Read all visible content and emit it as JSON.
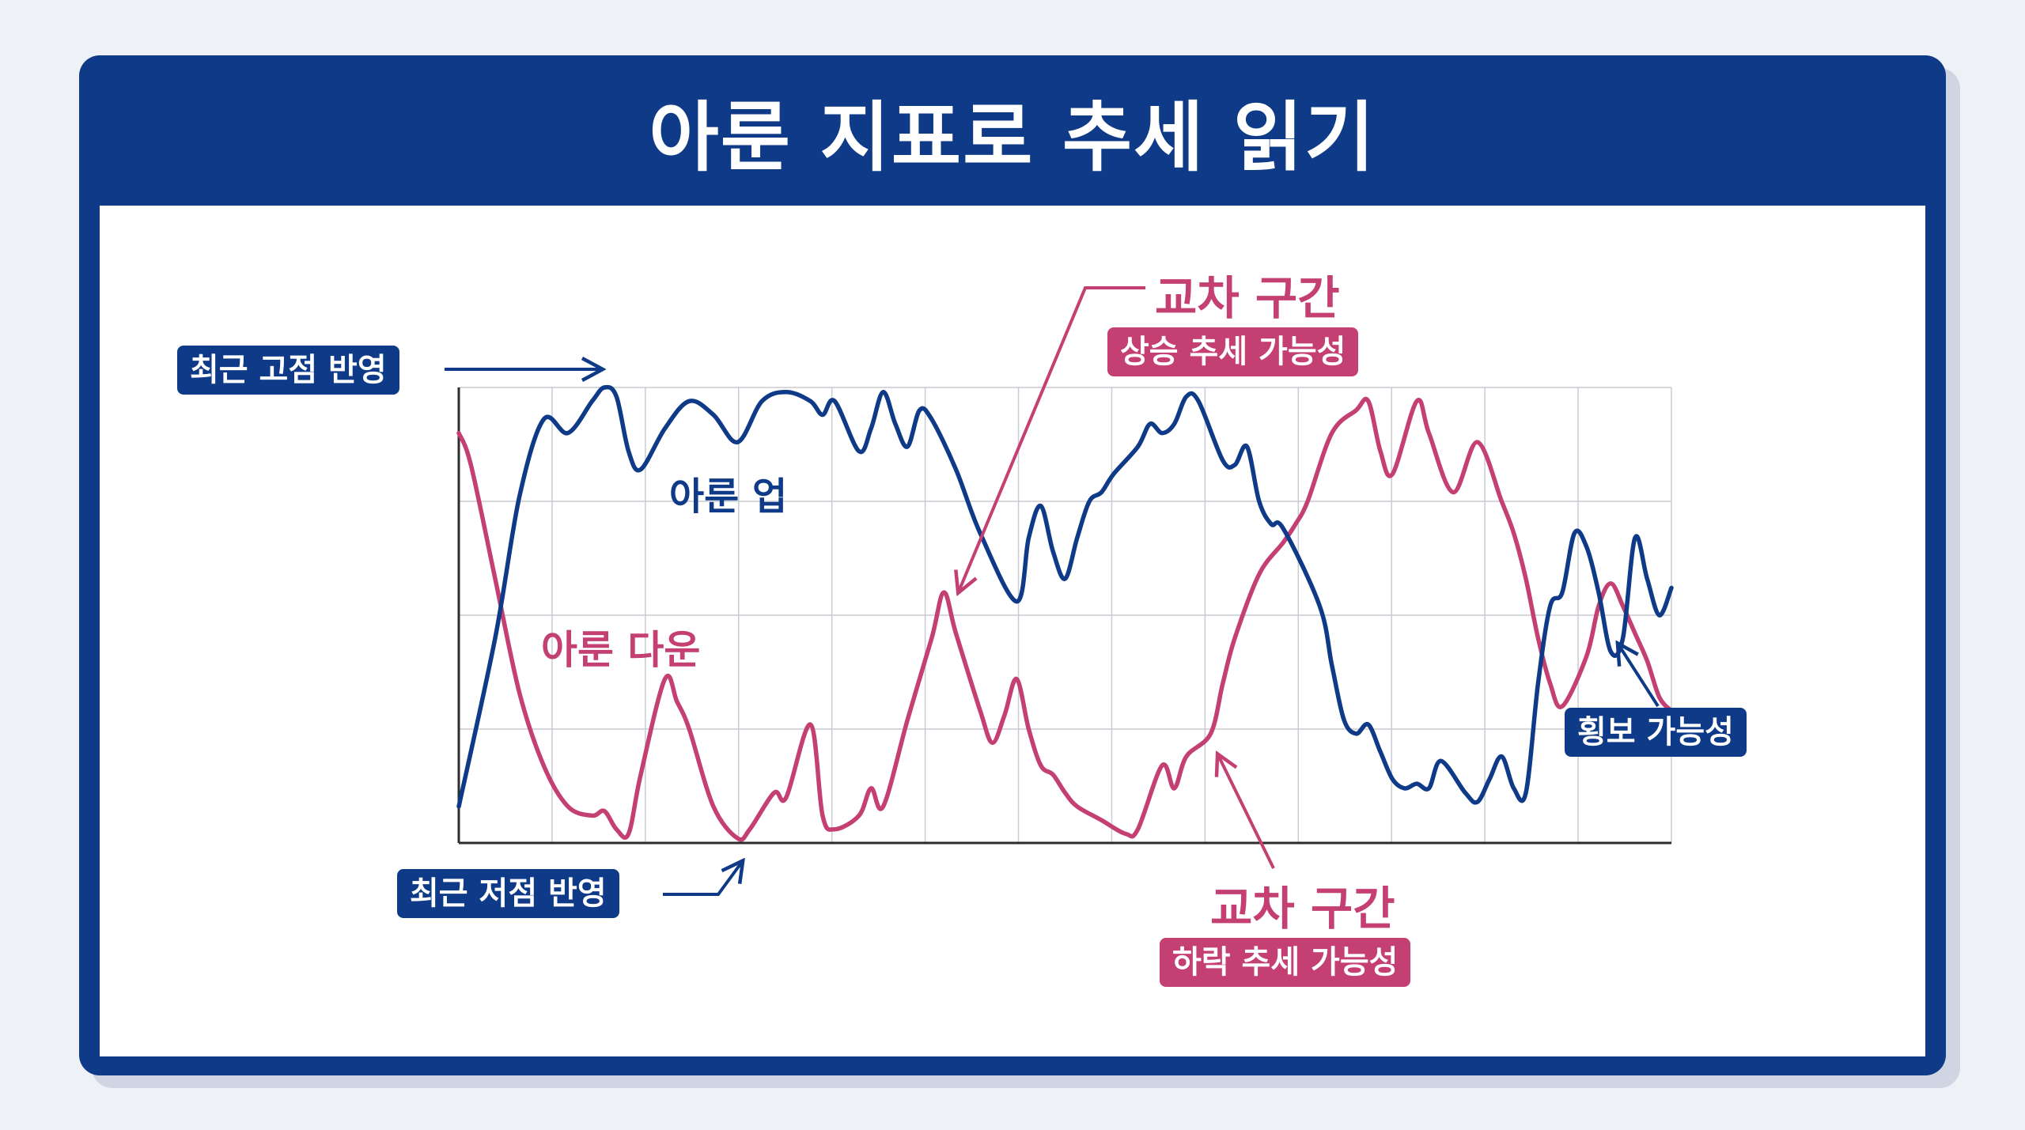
{
  "title": "아룬 지표로 추세 읽기",
  "colors": {
    "navy": "#0e3a87",
    "pink": "#c43f72",
    "grid": "#c9ccd3",
    "axis": "#2c2c2c"
  },
  "annotations": {
    "recent_high": "최근 고점 반영",
    "recent_low": "최근 저점 반영",
    "cross_up_title": "교차 구간",
    "cross_up_sub": "상승 추세 가능성",
    "cross_down_title": "교차 구간",
    "cross_down_sub": "하락 추세 가능성",
    "sideways": "횡보 가능성"
  },
  "chart_data": {
    "type": "line",
    "title": "아룬 지표로 추세 읽기",
    "xlabel": "",
    "ylabel": "",
    "ylim": [
      0,
      100
    ],
    "grid": true,
    "series": [
      {
        "name": "아룬 업",
        "color": "#0e3a87",
        "points": [
          [
            0,
            8
          ],
          [
            3,
            45
          ],
          [
            5,
            76
          ],
          [
            7,
            93
          ],
          [
            9,
            90
          ],
          [
            11,
            97
          ],
          [
            12,
            100
          ],
          [
            13,
            98
          ],
          [
            14,
            86
          ],
          [
            15,
            82
          ],
          [
            17,
            91
          ],
          [
            19,
            97
          ],
          [
            21,
            94
          ],
          [
            23,
            88
          ],
          [
            25,
            97
          ],
          [
            27,
            99
          ],
          [
            29,
            97
          ],
          [
            30,
            94
          ],
          [
            31,
            97
          ],
          [
            33,
            86
          ],
          [
            34,
            91
          ],
          [
            35,
            99
          ],
          [
            36,
            92
          ],
          [
            37,
            87
          ],
          [
            38,
            95
          ],
          [
            39,
            93
          ],
          [
            41,
            82
          ],
          [
            43,
            68
          ],
          [
            46,
            53
          ],
          [
            47,
            67
          ],
          [
            48,
            74
          ],
          [
            49,
            64
          ],
          [
            50,
            58
          ],
          [
            51,
            67
          ],
          [
            52,
            75
          ],
          [
            53,
            77
          ],
          [
            54,
            81
          ],
          [
            56,
            87
          ],
          [
            57,
            92
          ],
          [
            58,
            90
          ],
          [
            59,
            92
          ],
          [
            60,
            98
          ],
          [
            61,
            97
          ],
          [
            63,
            84
          ],
          [
            64,
            83
          ],
          [
            65,
            87
          ],
          [
            66,
            75
          ],
          [
            67,
            70
          ],
          [
            68,
            69
          ],
          [
            71,
            52
          ],
          [
            72,
            39
          ],
          [
            73,
            27
          ],
          [
            74,
            24
          ],
          [
            75,
            26
          ],
          [
            76,
            20
          ],
          [
            77,
            14
          ],
          [
            78,
            12
          ],
          [
            79,
            13
          ],
          [
            80,
            12
          ],
          [
            81,
            18
          ],
          [
            83,
            11
          ],
          [
            84,
            9
          ],
          [
            85,
            14
          ],
          [
            86,
            19
          ],
          [
            87,
            12
          ],
          [
            88,
            11
          ],
          [
            89,
            35
          ],
          [
            90,
            52
          ],
          [
            91,
            55
          ],
          [
            92,
            68
          ],
          [
            93,
            65
          ],
          [
            94,
            55
          ],
          [
            95,
            42
          ],
          [
            96,
            45
          ],
          [
            97,
            67
          ],
          [
            98,
            58
          ],
          [
            99,
            50
          ],
          [
            100,
            56
          ]
        ]
      },
      {
        "name": "아룬 다운",
        "color": "#c43f72",
        "points": [
          [
            0,
            90
          ],
          [
            1,
            83
          ],
          [
            3,
            58
          ],
          [
            5,
            33
          ],
          [
            7,
            17
          ],
          [
            9,
            8
          ],
          [
            11,
            6
          ],
          [
            12,
            7
          ],
          [
            13,
            3
          ],
          [
            14,
            2
          ],
          [
            15,
            15
          ],
          [
            17,
            36
          ],
          [
            18,
            31
          ],
          [
            19,
            25
          ],
          [
            21,
            8
          ],
          [
            23,
            1
          ],
          [
            24,
            3
          ],
          [
            26,
            11
          ],
          [
            27,
            10
          ],
          [
            29,
            26
          ],
          [
            30,
            6
          ],
          [
            31,
            3
          ],
          [
            33,
            6
          ],
          [
            34,
            12
          ],
          [
            35,
            8
          ],
          [
            37,
            27
          ],
          [
            39,
            45
          ],
          [
            40,
            55
          ],
          [
            41,
            46
          ],
          [
            43,
            29
          ],
          [
            44,
            22
          ],
          [
            45,
            28
          ],
          [
            46,
            36
          ],
          [
            47,
            25
          ],
          [
            48,
            17
          ],
          [
            49,
            15
          ],
          [
            50,
            11
          ],
          [
            51,
            8
          ],
          [
            53,
            5
          ],
          [
            55,
            2
          ],
          [
            56,
            3
          ],
          [
            58,
            17
          ],
          [
            59,
            12
          ],
          [
            60,
            19
          ],
          [
            62,
            24
          ],
          [
            63,
            35
          ],
          [
            64,
            45
          ],
          [
            66,
            59
          ],
          [
            68,
            66
          ],
          [
            69,
            70
          ],
          [
            70,
            75
          ],
          [
            72,
            90
          ],
          [
            74,
            95
          ],
          [
            75,
            97
          ],
          [
            76,
            86
          ],
          [
            77,
            81
          ],
          [
            79,
            97
          ],
          [
            80,
            90
          ],
          [
            82,
            77
          ],
          [
            84,
            88
          ],
          [
            86,
            75
          ],
          [
            87,
            68
          ],
          [
            88,
            58
          ],
          [
            89,
            45
          ],
          [
            90,
            35
          ],
          [
            91,
            30
          ],
          [
            93,
            41
          ],
          [
            94,
            52
          ],
          [
            95,
            57
          ],
          [
            96,
            52
          ],
          [
            97,
            46
          ],
          [
            98,
            40
          ],
          [
            99,
            32
          ],
          [
            100,
            29
          ]
        ]
      }
    ]
  }
}
